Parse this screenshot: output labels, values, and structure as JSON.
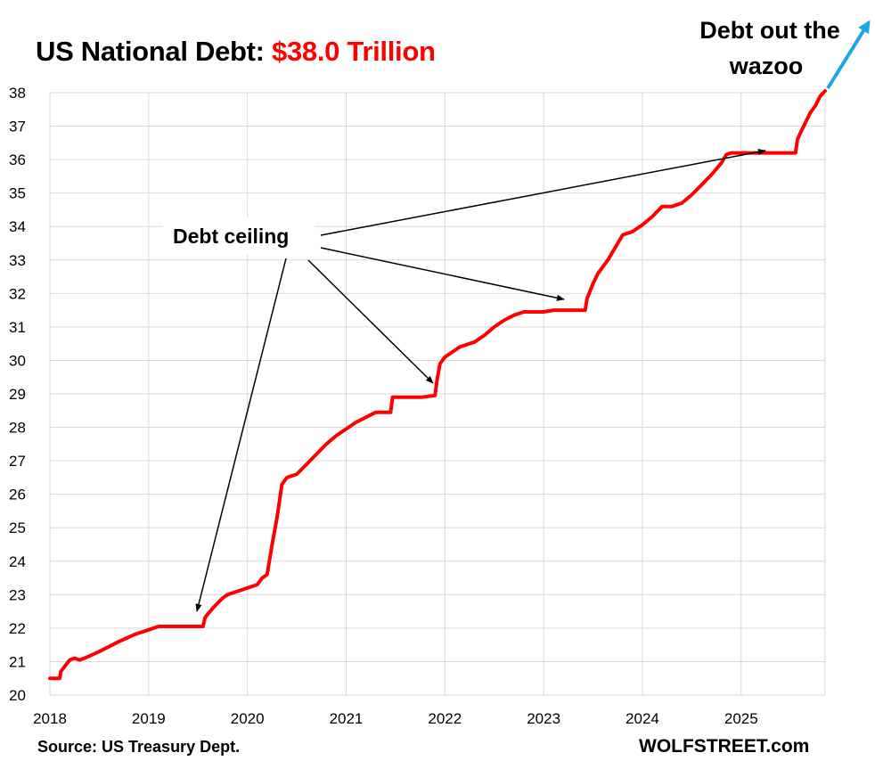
{
  "title_prefix": "US National Debt: ",
  "title_value": "$38.0 Trillion",
  "source": "Source: US Treasury Dept.",
  "brand": "WOLFSTREET.com",
  "annotations": {
    "debt_ceiling": "Debt ceiling",
    "wazoo_line1": "Debt out the",
    "wazoo_line2": "wazoo"
  },
  "colors": {
    "line": "#ff0000",
    "wazoo": "#1aa7e6",
    "grid": "#d9d9d9",
    "arrow": "#000000"
  },
  "chart_data": {
    "type": "line",
    "title": "US National Debt: $38.0 Trillion",
    "xlabel": "",
    "ylabel": "",
    "xlim": [
      2018,
      2025.85
    ],
    "ylim": [
      20,
      38
    ],
    "grid": true,
    "x_ticks": [
      "2018",
      "2019",
      "2020",
      "2021",
      "2022",
      "2023",
      "2024",
      "2025"
    ],
    "y_ticks": [
      "20",
      "21",
      "22",
      "23",
      "24",
      "25",
      "26",
      "27",
      "28",
      "29",
      "30",
      "31",
      "32",
      "33",
      "34",
      "35",
      "36",
      "37",
      "38"
    ],
    "series": [
      {
        "x": [
          2018.0,
          2018.1,
          2018.11,
          2018.2,
          2018.25,
          2018.3,
          2018.35,
          2018.5,
          2018.7,
          2018.85,
          2018.9,
          2019.0,
          2019.1,
          2019.2,
          2019.22,
          2019.55,
          2019.57,
          2019.58,
          2019.65,
          2019.75,
          2019.8,
          2019.9,
          2020.0,
          2020.1,
          2020.15,
          2020.2,
          2020.25,
          2020.3,
          2020.35,
          2020.4,
          2020.45,
          2020.5,
          2020.6,
          2020.7,
          2020.8,
          2020.9,
          2021.0,
          2021.1,
          2021.2,
          2021.3,
          2021.4,
          2021.45,
          2021.47,
          2021.6,
          2021.72,
          2021.74,
          2021.76,
          2021.9,
          2021.92,
          2021.95,
          2022.0,
          2022.1,
          2022.15,
          2022.3,
          2022.4,
          2022.5,
          2022.6,
          2022.7,
          2022.8,
          2022.9,
          2023.0,
          2023.1,
          2023.12,
          2023.42,
          2023.44,
          2023.5,
          2023.55,
          2023.65,
          2023.75,
          2023.8,
          2023.9,
          2024.0,
          2024.1,
          2024.2,
          2024.3,
          2024.4,
          2024.5,
          2024.6,
          2024.7,
          2024.8,
          2024.85,
          2024.9,
          2024.95,
          2025.0,
          2025.2,
          2025.55,
          2025.57,
          2025.6,
          2025.7,
          2025.75,
          2025.8,
          2025.85
        ],
        "values": [
          20.5,
          20.5,
          20.7,
          21.05,
          21.1,
          21.05,
          21.1,
          21.3,
          21.6,
          21.8,
          21.85,
          21.95,
          22.05,
          22.05,
          22.05,
          22.05,
          22.3,
          22.35,
          22.6,
          22.9,
          23.0,
          23.1,
          23.2,
          23.3,
          23.5,
          23.6,
          24.5,
          25.3,
          26.3,
          26.5,
          26.55,
          26.6,
          26.9,
          27.2,
          27.5,
          27.75,
          27.95,
          28.15,
          28.3,
          28.45,
          28.45,
          28.45,
          28.9,
          28.9,
          28.9,
          28.9,
          28.9,
          28.95,
          29.4,
          29.9,
          30.1,
          30.3,
          30.4,
          30.55,
          30.75,
          31.0,
          31.2,
          31.35,
          31.45,
          31.45,
          31.45,
          31.5,
          31.5,
          31.5,
          31.85,
          32.3,
          32.6,
          33.0,
          33.5,
          33.75,
          33.85,
          34.05,
          34.3,
          34.6,
          34.6,
          34.7,
          34.95,
          35.25,
          35.55,
          35.9,
          36.15,
          36.2,
          36.2,
          36.2,
          36.2,
          36.2,
          36.6,
          36.8,
          37.4,
          37.6,
          37.9,
          38.05
        ]
      }
    ]
  }
}
